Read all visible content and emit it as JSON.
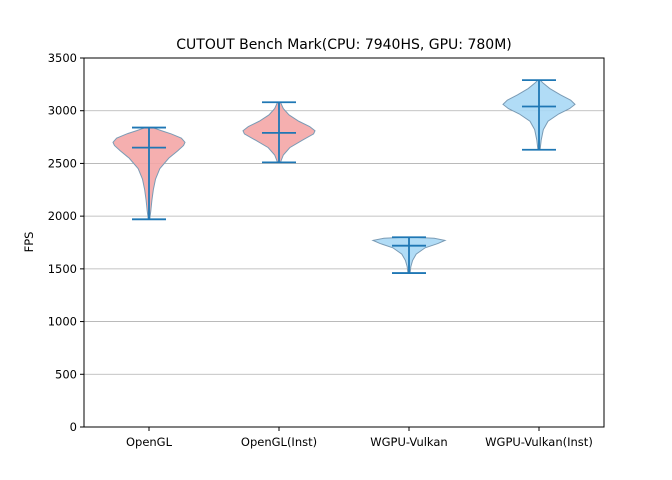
{
  "chart_data": {
    "type": "violin",
    "title": "CUTOUT Bench Mark(CPU: 7940HS, GPU: 780M)",
    "xlabel": "",
    "ylabel": "FPS",
    "ylim": [
      0,
      3500
    ],
    "yticks": [
      0,
      500,
      1000,
      1500,
      2000,
      2500,
      3000,
      3500
    ],
    "grid": "horizontal",
    "categories": [
      "OpenGL",
      "OpenGL(Inst)",
      "WGPU-Vulkan",
      "WGPU-Vulkan(Inst)"
    ],
    "series": [
      {
        "min": 1970,
        "mean": 2650,
        "max": 2840,
        "color": "#f4a6a6",
        "density": [
          [
            1970,
            0.02
          ],
          [
            2050,
            0.05
          ],
          [
            2150,
            0.08
          ],
          [
            2250,
            0.12
          ],
          [
            2350,
            0.18
          ],
          [
            2450,
            0.3
          ],
          [
            2550,
            0.55
          ],
          [
            2620,
            0.8
          ],
          [
            2670,
            0.96
          ],
          [
            2700,
            1.0
          ],
          [
            2740,
            0.9
          ],
          [
            2780,
            0.62
          ],
          [
            2810,
            0.35
          ],
          [
            2840,
            0.1
          ]
        ]
      },
      {
        "min": 2510,
        "mean": 2790,
        "max": 3080,
        "color": "#f4a6a6",
        "density": [
          [
            2510,
            0.04
          ],
          [
            2580,
            0.12
          ],
          [
            2650,
            0.3
          ],
          [
            2720,
            0.65
          ],
          [
            2780,
            0.96
          ],
          [
            2810,
            1.0
          ],
          [
            2850,
            0.85
          ],
          [
            2900,
            0.55
          ],
          [
            2960,
            0.28
          ],
          [
            3020,
            0.12
          ],
          [
            3080,
            0.04
          ]
        ]
      },
      {
        "min": 1460,
        "mean": 1720,
        "max": 1800,
        "color": "#a8d8f5",
        "density": [
          [
            1460,
            0.03
          ],
          [
            1520,
            0.05
          ],
          [
            1580,
            0.1
          ],
          [
            1640,
            0.2
          ],
          [
            1700,
            0.45
          ],
          [
            1740,
            0.8
          ],
          [
            1770,
            1.0
          ],
          [
            1790,
            0.7
          ],
          [
            1800,
            0.1
          ]
        ]
      },
      {
        "min": 2630,
        "mean": 3040,
        "max": 3290,
        "color": "#a8d8f5",
        "density": [
          [
            2630,
            0.03
          ],
          [
            2720,
            0.06
          ],
          [
            2820,
            0.12
          ],
          [
            2900,
            0.25
          ],
          [
            2970,
            0.55
          ],
          [
            3020,
            0.85
          ],
          [
            3060,
            1.0
          ],
          [
            3100,
            0.88
          ],
          [
            3150,
            0.6
          ],
          [
            3210,
            0.3
          ],
          [
            3260,
            0.12
          ],
          [
            3290,
            0.03
          ]
        ]
      }
    ]
  },
  "colors": {
    "stat_line": "#1f77b4",
    "violin_edge": "#7a9bb5",
    "grid": "#b0b0b0"
  }
}
